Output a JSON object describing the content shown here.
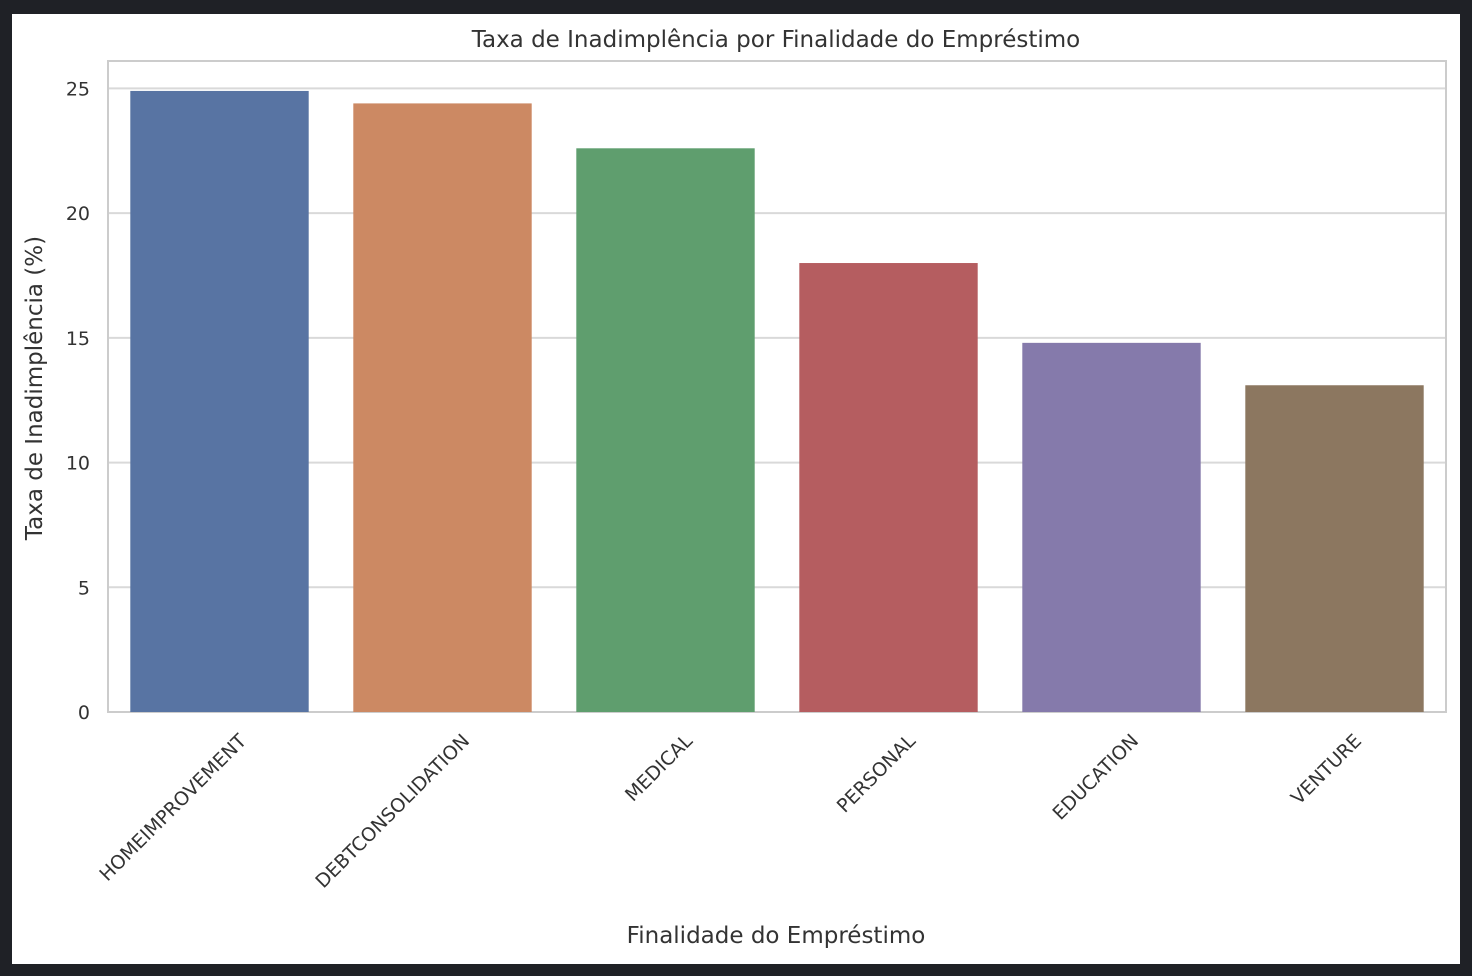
{
  "chart_data": {
    "type": "bar",
    "title": "Taxa de Inadimplência por Finalidade do Empréstimo",
    "xlabel": "Finalidade do Empréstimo",
    "ylabel": "Taxa de Inadimplência (%)",
    "categories": [
      "HOMEIMPROVEMENT",
      "DEBTCONSOLIDATION",
      "MEDICAL",
      "PERSONAL",
      "EDUCATION",
      "VENTURE"
    ],
    "values": [
      24.9,
      24.4,
      22.6,
      18.0,
      14.8,
      13.1
    ],
    "colors": [
      "#5874a3",
      "#cc8963",
      "#5f9e6e",
      "#b55d60",
      "#857aab",
      "#8c7760"
    ],
    "ylim": [
      0,
      26.1
    ],
    "yticks": [
      0,
      5,
      10,
      15,
      20,
      25
    ],
    "grid": true,
    "legend": "none"
  }
}
